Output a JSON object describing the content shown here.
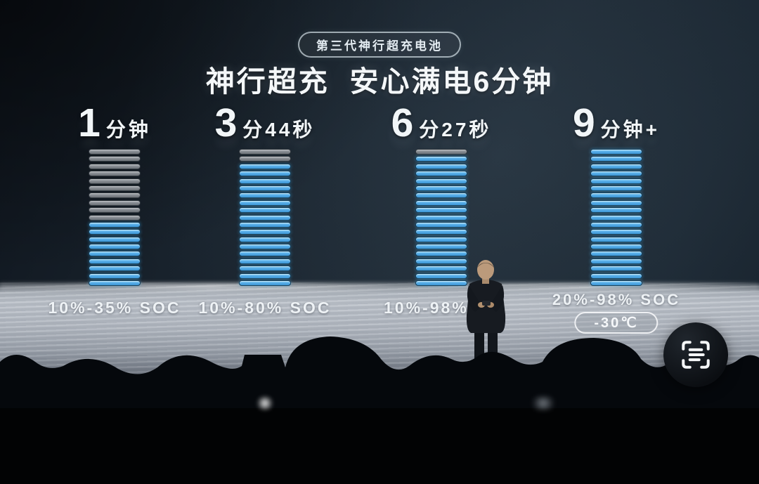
{
  "badge": {
    "label": "第三代神行超充电池"
  },
  "title": "神行超充  安心满电6分钟",
  "columns": [
    {
      "time_big": "1",
      "time_small": "分钟",
      "soc": "10%-35% SOC",
      "bars_gray": 10,
      "bars_blue": 9
    },
    {
      "time_big": "3",
      "time_small": "分44秒",
      "soc": "10%-80% SOC",
      "bars_gray": 2,
      "bars_blue": 17
    },
    {
      "time_big": "6",
      "time_small": "分27秒",
      "soc": "10%-98% S",
      "bars_gray": 1,
      "bars_blue": 18
    },
    {
      "time_big": "9",
      "time_small": "分钟+",
      "soc": "20%-98% SOC",
      "bars_gray": 0,
      "bars_blue": 19,
      "temp_badge": "-30℃"
    }
  ],
  "icons": {
    "scan": "scan-text-icon"
  },
  "colors": {
    "bar_blue": "#54ade6",
    "bar_gray": "#888e94",
    "background": "#1e2933",
    "light_band": "#b9bfc7",
    "text": "#f2f6f8"
  },
  "chart_data": {
    "type": "bar",
    "title": "神行超充  安心满电6分钟",
    "badge": "第三代神行超充电池",
    "categories": [
      "1分钟",
      "3分44秒",
      "6分27秒",
      "9分钟+"
    ],
    "series": [
      {
        "name": "charged-segments",
        "values": [
          9,
          17,
          18,
          19
        ]
      },
      {
        "name": "uncharged-segments",
        "values": [
          10,
          2,
          1,
          0
        ]
      }
    ],
    "segments_per_battery": 19,
    "value_labels": [
      "10%-35% SOC",
      "10%-80% SOC",
      "10%-98% S",
      "20%-98% SOC"
    ],
    "annotations": [
      "-30℃"
    ],
    "legend": "none",
    "grid": false,
    "orientation": "vertical-stacked-segments"
  }
}
